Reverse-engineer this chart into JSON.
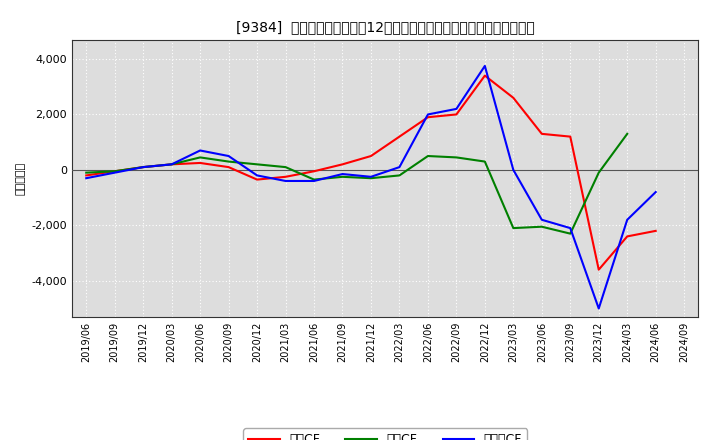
{
  "title": "[9384]  キャッシュフローの12か月移動合計の対前年同期増減額の推移",
  "ylabel": "（百万円）",
  "background_color": "#ffffff",
  "plot_bg_color": "#dddddd",
  "ylim": [
    -5300,
    4700
  ],
  "yticks": [
    -4000,
    -2000,
    0,
    2000,
    4000
  ],
  "legend_labels": [
    "営業CF",
    "投資CF",
    "フリーCF"
  ],
  "line_colors": [
    "#ff0000",
    "#008000",
    "#0000ff"
  ],
  "x_labels": [
    "2019/06",
    "2019/09",
    "2019/12",
    "2020/03",
    "2020/06",
    "2020/09",
    "2020/12",
    "2021/03",
    "2021/06",
    "2021/09",
    "2021/12",
    "2022/03",
    "2022/06",
    "2022/09",
    "2022/12",
    "2023/03",
    "2023/06",
    "2023/09",
    "2023/12",
    "2024/03",
    "2024/06",
    "2024/09"
  ],
  "operating_cf": [
    -200,
    -50,
    100,
    200,
    250,
    100,
    -350,
    -250,
    -50,
    200,
    500,
    1200,
    1900,
    2000,
    3400,
    2600,
    1300,
    1200,
    -3600,
    -2400,
    -2200,
    null
  ],
  "investing_cf": [
    -100,
    -50,
    100,
    200,
    450,
    300,
    200,
    100,
    -350,
    -250,
    -300,
    -200,
    500,
    450,
    300,
    -2100,
    -2050,
    -2300,
    -100,
    1300,
    null,
    null
  ],
  "free_cf": [
    -300,
    -100,
    100,
    200,
    700,
    500,
    -200,
    -400,
    -400,
    -150,
    -250,
    100,
    2000,
    2200,
    3750,
    0,
    -1800,
    -2100,
    -5000,
    -1800,
    -800,
    null
  ]
}
